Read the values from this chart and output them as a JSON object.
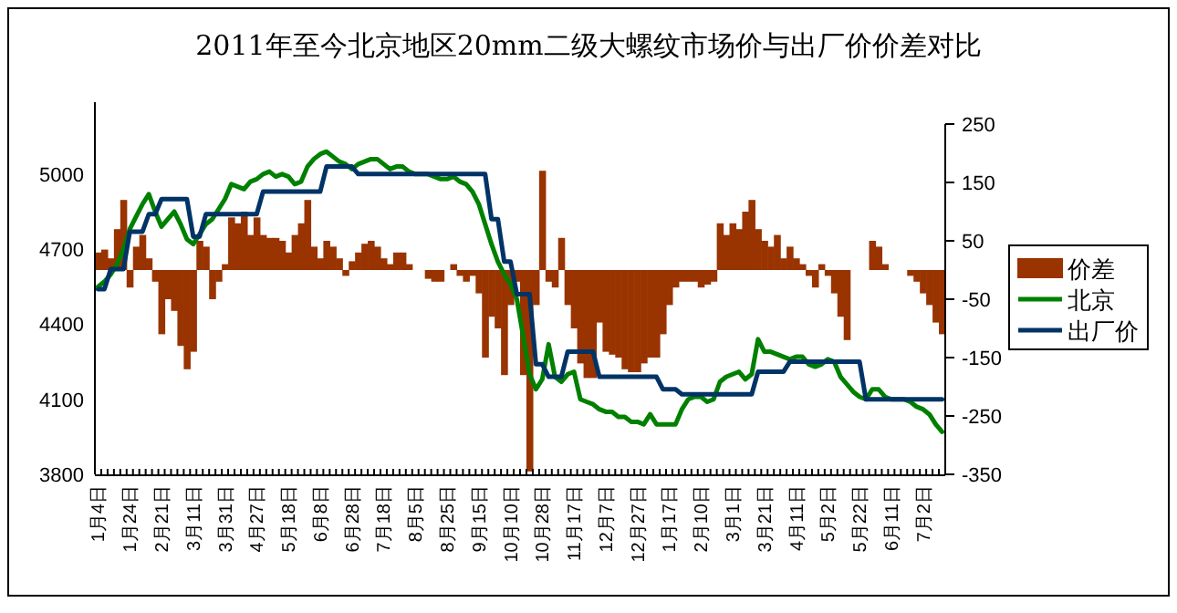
{
  "chart_data": {
    "type": "bar",
    "title": "2011年至今北京地区20mm二级大螺纹市场价与出厂价价差对比",
    "categories": [
      "1月4日",
      null,
      null,
      null,
      null,
      "1月24日",
      null,
      null,
      null,
      null,
      "2月21日",
      null,
      null,
      null,
      null,
      "3月11日",
      null,
      null,
      null,
      null,
      "3月31日",
      null,
      null,
      null,
      null,
      "4月27日",
      null,
      null,
      null,
      null,
      "5月18日",
      null,
      null,
      null,
      null,
      "6月8日",
      null,
      null,
      null,
      null,
      "6月28日",
      null,
      null,
      null,
      null,
      "7月18日",
      null,
      null,
      null,
      null,
      "8月5日",
      null,
      null,
      null,
      null,
      "8月25日",
      null,
      null,
      null,
      null,
      "9月15日",
      null,
      null,
      null,
      null,
      "10月10日",
      null,
      null,
      null,
      null,
      "10月28日",
      null,
      null,
      null,
      null,
      "11月17日",
      null,
      null,
      null,
      null,
      "12月7日",
      null,
      null,
      null,
      null,
      "12月27日",
      null,
      null,
      null,
      null,
      "1月17日",
      null,
      null,
      null,
      null,
      "2月10日",
      null,
      null,
      null,
      null,
      "3月1日",
      null,
      null,
      null,
      null,
      "3月21日",
      null,
      null,
      null,
      null,
      "4月11日",
      null,
      null,
      null,
      null,
      "5月2日",
      null,
      null,
      null,
      null,
      "5月22日",
      null,
      null,
      null,
      null,
      "6月11日",
      null,
      null,
      null,
      null,
      "7月2日",
      null,
      null,
      null
    ],
    "series": [
      {
        "name": "价差",
        "axis": "y2",
        "color": "#993300",
        "values": [
          30,
          35,
          20,
          70,
          120,
          -30,
          40,
          60,
          20,
          -20,
          -110,
          -50,
          -70,
          -130,
          -170,
          -140,
          50,
          40,
          -50,
          -20,
          10,
          90,
          80,
          100,
          60,
          90,
          60,
          55,
          55,
          50,
          30,
          60,
          80,
          120,
          40,
          20,
          50,
          40,
          20,
          -10,
          15,
          30,
          45,
          50,
          40,
          20,
          10,
          30,
          30,
          10,
          null,
          null,
          -15,
          -20,
          -20,
          null,
          10,
          -10,
          -20,
          -10,
          -40,
          -150,
          -80,
          -100,
          -180,
          -60,
          -20,
          -180,
          -345,
          -60,
          170,
          -20,
          -30,
          55,
          -60,
          -100,
          -160,
          -185,
          -185,
          -90,
          -140,
          -145,
          -150,
          -170,
          -175,
          -175,
          -160,
          -150,
          -150,
          -110,
          -60,
          -30,
          -20,
          -20,
          -20,
          -30,
          -25,
          -20,
          80,
          60,
          80,
          70,
          100,
          120,
          70,
          50,
          40,
          60,
          20,
          40,
          20,
          10,
          -10,
          -30,
          10,
          -10,
          -40,
          -80,
          -120,
          null,
          null,
          null,
          50,
          40,
          10,
          null,
          null,
          null,
          -10,
          -20,
          -40,
          -60,
          -90,
          -110
        ]
      },
      {
        "name": "北京",
        "type": "line",
        "color": "#008000",
        "values": [
          4550,
          4570,
          4600,
          4640,
          4700,
          4780,
          4830,
          4880,
          4920,
          4850,
          4790,
          4820,
          4850,
          4800,
          4740,
          4720,
          4760,
          4800,
          4820,
          4860,
          4900,
          4960,
          4950,
          4940,
          4970,
          4980,
          5000,
          5010,
          4990,
          5000,
          4990,
          4960,
          4970,
          5030,
          5060,
          5080,
          5090,
          5070,
          5050,
          5040,
          5020,
          5040,
          5050,
          5060,
          5060,
          5040,
          5020,
          5030,
          5030,
          5010,
          5000,
          5000,
          5000,
          4990,
          4980,
          4980,
          4990,
          4970,
          4960,
          4930,
          4880,
          4800,
          4720,
          4650,
          4600,
          4560,
          4500,
          4350,
          4200,
          4140,
          4180,
          4320,
          4190,
          4170,
          4200,
          4210,
          4100,
          4090,
          4080,
          4060,
          4050,
          4050,
          4030,
          4030,
          4010,
          4010,
          4000,
          4040,
          4000,
          4000,
          4000,
          4000,
          4060,
          4100,
          4110,
          4110,
          4090,
          4100,
          4170,
          4190,
          4200,
          4210,
          4180,
          4200,
          4340,
          4290,
          4290,
          4280,
          4270,
          4260,
          4270,
          4270,
          4240,
          4230,
          4240,
          4260,
          4250,
          4190,
          4160,
          4130,
          4110,
          4100,
          4140,
          4140,
          4110,
          4100,
          4100,
          4100,
          4090,
          4070,
          4060,
          4040,
          4000,
          3970
        ]
      },
      {
        "name": "出厂价",
        "type": "line",
        "color": "#003366",
        "values": [
          4540,
          4540,
          4620,
          4620,
          4620,
          4770,
          4770,
          4770,
          4840,
          4840,
          4900,
          4900,
          4900,
          4900,
          4900,
          4750,
          4750,
          4840,
          4840,
          4840,
          4840,
          4840,
          4840,
          4840,
          4840,
          4840,
          4930,
          4930,
          4930,
          4930,
          4930,
          4930,
          4930,
          4930,
          4930,
          4930,
          5030,
          5030,
          5030,
          5030,
          5030,
          5000,
          5000,
          5000,
          5000,
          5000,
          5000,
          5000,
          5000,
          5000,
          5000,
          5000,
          5000,
          5000,
          5000,
          5000,
          5000,
          5000,
          5000,
          5000,
          5000,
          5000,
          4820,
          4820,
          4650,
          4650,
          4520,
          4520,
          4520,
          4240,
          4240,
          4190,
          4190,
          4190,
          4290,
          4290,
          4290,
          4290,
          4290,
          4190,
          4190,
          4190,
          4190,
          4190,
          4190,
          4190,
          4190,
          4190,
          4190,
          4140,
          4140,
          4140,
          4120,
          4120,
          4120,
          4120,
          4120,
          4120,
          4120,
          4120,
          4120,
          4120,
          4120,
          4120,
          4210,
          4210,
          4210,
          4210,
          4210,
          4250,
          4250,
          4250,
          4250,
          4250,
          4250,
          4250,
          4250,
          4250,
          4250,
          4250,
          4250,
          4100,
          4100,
          4100,
          4100,
          4100,
          4100,
          4100,
          4100,
          4100,
          4100,
          4100,
          4100,
          4100
        ]
      }
    ],
    "ylim": [
      3800,
      5200
    ],
    "yticks": [
      3800,
      4100,
      4400,
      4700,
      5000
    ],
    "y2lim": [
      -350,
      250
    ],
    "y2ticks": [
      -350,
      -250,
      -150,
      -50,
      50,
      150,
      250
    ],
    "legend": "right"
  }
}
